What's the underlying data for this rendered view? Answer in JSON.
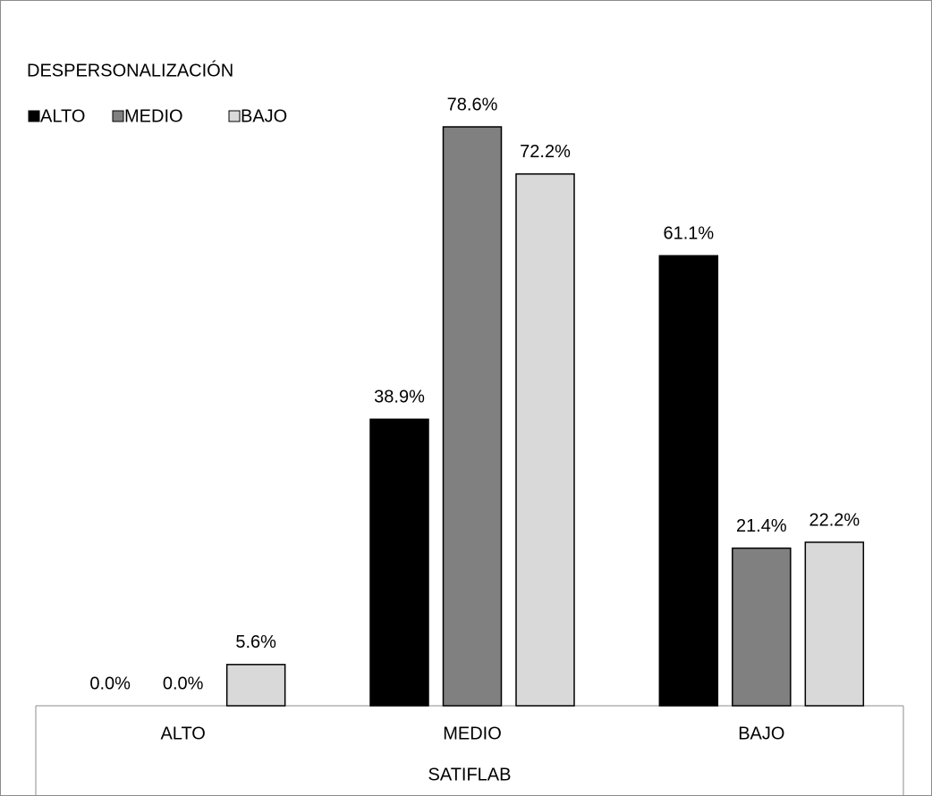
{
  "chart_data": {
    "type": "bar",
    "legend_title": "DESPERSONALIZACIÓN",
    "x_label": "SATIFLAB",
    "categories": [
      "ALTO",
      "MEDIO",
      "BAJO"
    ],
    "series": [
      {
        "name": "ALTO",
        "color": "#000000",
        "values": [
          0.0,
          38.9,
          61.1
        ],
        "value_labels": [
          "0.0%",
          "38.9%",
          "61.1%"
        ]
      },
      {
        "name": "MEDIO",
        "color": "#808080",
        "values": [
          0.0,
          78.6,
          21.4
        ],
        "value_labels": [
          "0.0%",
          "78.6%",
          "21.4%"
        ]
      },
      {
        "name": "BAJO",
        "color": "#d9d9d9",
        "values": [
          5.6,
          72.2,
          22.2
        ],
        "value_labels": [
          "5.6%",
          "72.2%",
          "22.2%"
        ]
      }
    ],
    "legend": "top-left"
  }
}
